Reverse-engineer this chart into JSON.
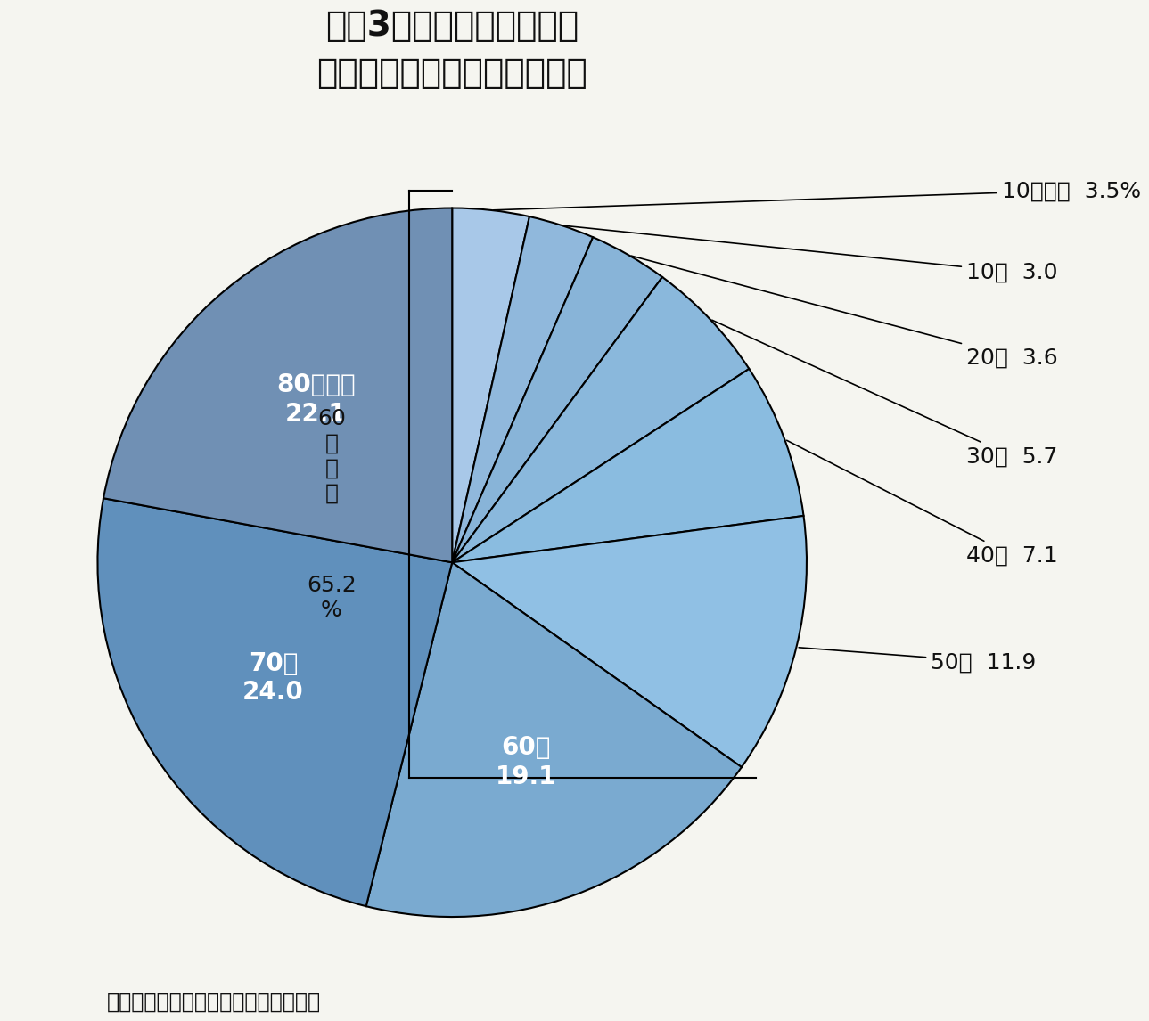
{
  "title_line1": "被災3県死者の年齢別内訳",
  "title_line2": "（岩手、宮城、福島の合計）",
  "note": "（注）年齢判明分対象。警察庁まとめ",
  "bracket_label_line1": "60",
  "bracket_label_line2": "歳",
  "bracket_label_line3": "以",
  "bracket_label_line4": "上",
  "bracket_label_line5": "65.2",
  "bracket_label_line6": "%",
  "slices": [
    {
      "label": "10歳未満",
      "value": 3.5,
      "color": "#a8c8e8",
      "inside_label": "",
      "outside_label": "10歳未満  3.5%"
    },
    {
      "label": "10代",
      "value": 3.0,
      "color": "#90b8dc",
      "inside_label": "",
      "outside_label": "10代  3.0"
    },
    {
      "label": "20代",
      "value": 3.6,
      "color": "#88b4d8",
      "inside_label": "",
      "outside_label": "20代  3.6"
    },
    {
      "label": "30代",
      "value": 5.7,
      "color": "#8ab8dc",
      "inside_label": "",
      "outside_label": "30代  5.7"
    },
    {
      "label": "40代",
      "value": 7.1,
      "color": "#8abce0",
      "inside_label": "",
      "outside_label": "40代  7.1"
    },
    {
      "label": "50代",
      "value": 11.9,
      "color": "#90c0e4",
      "inside_label": "",
      "outside_label": "50代  11.9"
    },
    {
      "label": "60代",
      "value": 19.1,
      "color": "#7aaad0",
      "inside_label": "60代\n19.1",
      "outside_label": ""
    },
    {
      "label": "70代",
      "value": 24.0,
      "color": "#6090bc",
      "inside_label": "70代\n24.0",
      "outside_label": ""
    },
    {
      "label": "80歳以上",
      "value": 22.1,
      "color": "#7090b4",
      "inside_label": "80歳以上\n22.1",
      "outside_label": ""
    }
  ],
  "background_color": "#f5f5f0",
  "text_color": "#111111",
  "title_fontsize": 28,
  "subtitle_fontsize": 22,
  "label_fontsize": 18,
  "inside_label_fontsize": 20,
  "note_fontsize": 17
}
